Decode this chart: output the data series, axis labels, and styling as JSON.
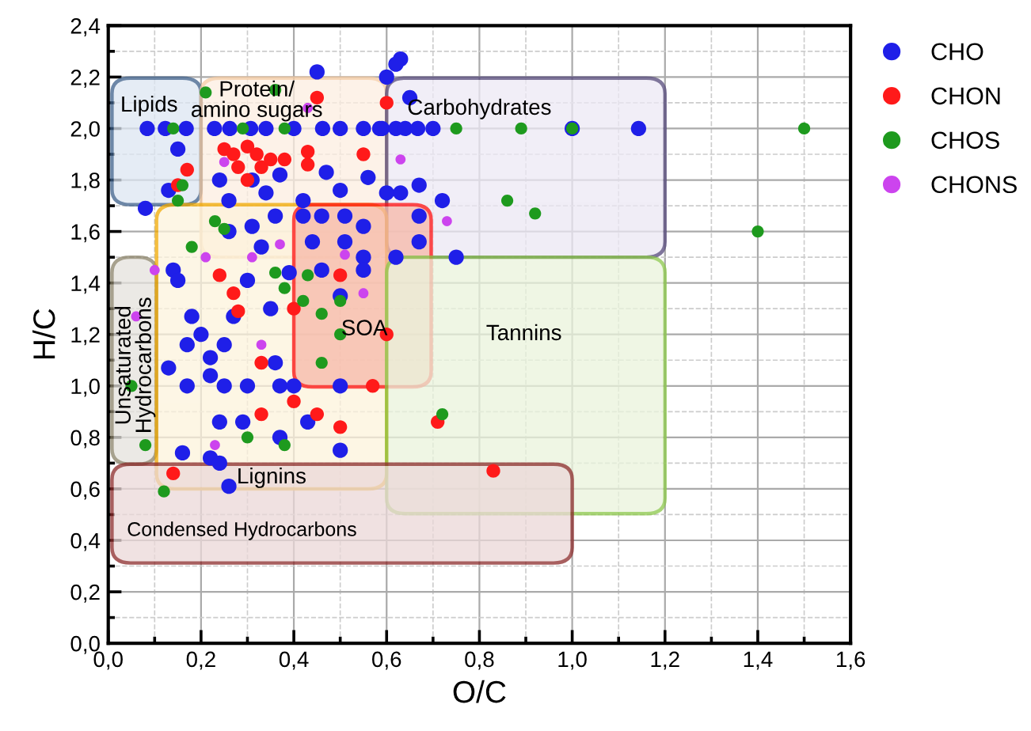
{
  "chart_data": {
    "type": "scatter",
    "xlabel": "O/C",
    "ylabel": "H/C",
    "xlim": [
      0,
      1.6
    ],
    "ylim": [
      0,
      2.4
    ],
    "xticks": [
      {
        "value": 0,
        "label": "0,0"
      },
      {
        "value": 0.2,
        "label": "0,2"
      },
      {
        "value": 0.4,
        "label": "0,4"
      },
      {
        "value": 0.6,
        "label": "0,6"
      },
      {
        "value": 0.8,
        "label": "0,8"
      },
      {
        "value": 1.0,
        "label": "1,0"
      },
      {
        "value": 1.2,
        "label": "1,2"
      },
      {
        "value": 1.4,
        "label": "1,4"
      },
      {
        "value": 1.6,
        "label": "1,6"
      }
    ],
    "yticks": [
      {
        "value": 0,
        "label": "0,0"
      },
      {
        "value": 0.2,
        "label": "0,2"
      },
      {
        "value": 0.4,
        "label": "0,4"
      },
      {
        "value": 0.6,
        "label": "0,6"
      },
      {
        "value": 0.8,
        "label": "0,8"
      },
      {
        "value": 1.0,
        "label": "1,0"
      },
      {
        "value": 1.2,
        "label": "1,2"
      },
      {
        "value": 1.4,
        "label": "1,4"
      },
      {
        "value": 1.6,
        "label": "1,6"
      },
      {
        "value": 1.8,
        "label": "1,8"
      },
      {
        "value": 2.0,
        "label": "2,0"
      },
      {
        "value": 2.2,
        "label": "2,2"
      },
      {
        "value": 2.4,
        "label": "2,4"
      }
    ],
    "grid": true,
    "legend": "top right",
    "marker": "circle",
    "series": [
      {
        "name": "CHO",
        "color": "#1f1fe8",
        "x": [
          0.084,
          0.123,
          0.168,
          0.229,
          0.262,
          0.307,
          0.34,
          0.4,
          0.462,
          0.5,
          0.55,
          0.59,
          0.585,
          0.62,
          0.64,
          0.667,
          0.7,
          1.0,
          1.143,
          0.45,
          0.6,
          0.63,
          0.62,
          0.65,
          0.08,
          0.13,
          0.15,
          0.24,
          0.31,
          0.37,
          0.47,
          0.5,
          0.56,
          0.26,
          0.34,
          0.42,
          0.6,
          0.31,
          0.36,
          0.26,
          0.33,
          0.42,
          0.46,
          0.51,
          0.55,
          0.44,
          0.51,
          0.55,
          0.46,
          0.14,
          0.15,
          0.67,
          0.63,
          0.72,
          0.67,
          0.67,
          0.62,
          0.75,
          0.18,
          0.2,
          0.17,
          0.13,
          0.25,
          0.22,
          0.22,
          0.17,
          0.25,
          0.3,
          0.35,
          0.3,
          0.27,
          0.36,
          0.37,
          0.4,
          0.24,
          0.29,
          0.37,
          0.43,
          0.16,
          0.22,
          0.24,
          0.5,
          0.26,
          0.39,
          0.5,
          0.55,
          0.5
        ],
        "values": [
          2.0,
          2.0,
          2.0,
          2.0,
          2.0,
          2.0,
          2.0,
          2.0,
          2.0,
          2.0,
          2.0,
          2.0,
          2.0,
          2.0,
          2.0,
          2.0,
          2.0,
          2.0,
          2.0,
          2.22,
          2.2,
          2.27,
          2.25,
          2.12,
          1.69,
          1.76,
          1.92,
          1.8,
          1.8,
          1.82,
          1.83,
          1.76,
          1.81,
          1.72,
          1.75,
          1.72,
          1.75,
          1.62,
          1.66,
          1.6,
          1.54,
          1.66,
          1.66,
          1.66,
          1.62,
          1.56,
          1.56,
          1.5,
          1.45,
          1.45,
          1.41,
          1.78,
          1.75,
          1.72,
          1.66,
          1.56,
          1.5,
          1.5,
          1.27,
          1.2,
          1.16,
          1.07,
          1.16,
          1.11,
          1.04,
          1.0,
          1.0,
          1.0,
          1.3,
          1.41,
          1.27,
          1.09,
          1.0,
          1.0,
          0.86,
          0.86,
          0.8,
          0.86,
          0.74,
          0.72,
          0.7,
          0.75,
          0.61,
          1.44,
          1.35,
          1.45,
          1.0
        ]
      },
      {
        "name": "CHON",
        "color": "#ff1a1a",
        "x": [
          0.25,
          0.27,
          0.3,
          0.32,
          0.28,
          0.33,
          0.3,
          0.35,
          0.43,
          0.43,
          0.38,
          0.55,
          0.17,
          0.15,
          0.45,
          0.6,
          0.27,
          0.28,
          0.33,
          0.4,
          0.45,
          0.33,
          0.5,
          0.14,
          0.5,
          0.4,
          0.6,
          0.57,
          0.24,
          0.71,
          0.83
        ],
        "values": [
          1.92,
          1.9,
          1.93,
          1.9,
          1.85,
          1.85,
          1.8,
          1.88,
          1.86,
          1.91,
          1.88,
          1.9,
          1.84,
          1.78,
          2.12,
          2.1,
          1.36,
          1.29,
          1.09,
          0.94,
          0.89,
          0.89,
          0.84,
          0.66,
          1.43,
          1.3,
          1.2,
          1.0,
          1.43,
          0.86,
          0.67
        ]
      },
      {
        "name": "CHOS",
        "color": "#1e9a1e",
        "x": [
          0.14,
          0.29,
          0.38,
          0.75,
          0.89,
          1.0,
          1.5,
          1.4,
          0.05,
          0.08,
          0.3,
          0.38,
          0.12,
          0.46,
          0.5,
          0.46,
          0.42,
          0.5,
          0.43,
          0.38,
          0.36,
          0.72,
          0.86,
          0.92,
          0.21,
          0.36,
          0.16,
          0.15,
          0.23,
          0.25,
          0.18
        ],
        "values": [
          2.0,
          2.0,
          2.0,
          2.0,
          2.0,
          2.0,
          2.0,
          1.6,
          1.0,
          0.77,
          0.8,
          0.77,
          0.59,
          1.09,
          1.2,
          1.28,
          1.33,
          1.33,
          1.43,
          1.38,
          1.44,
          0.89,
          1.72,
          1.67,
          2.14,
          2.15,
          1.78,
          1.72,
          1.64,
          1.61,
          1.54
        ]
      },
      {
        "name": "CHONS",
        "color": "#cc44ee",
        "x": [
          0.25,
          0.43,
          0.37,
          0.31,
          0.21,
          0.1,
          0.51,
          0.63,
          0.73,
          0.06,
          0.33,
          0.23,
          0.55
        ],
        "values": [
          1.87,
          2.08,
          1.55,
          1.5,
          1.5,
          1.45,
          1.51,
          1.88,
          1.64,
          1.27,
          1.16,
          0.77,
          1.36
        ]
      }
    ],
    "annotations": [
      "Lipids",
      "Protein/\namino sugars",
      "Carbohydrates",
      "Unsaturated\nHydrocarbons",
      "Lignins",
      "SOA",
      "Tannins",
      "Condensed Hydrocarbons"
    ]
  }
}
